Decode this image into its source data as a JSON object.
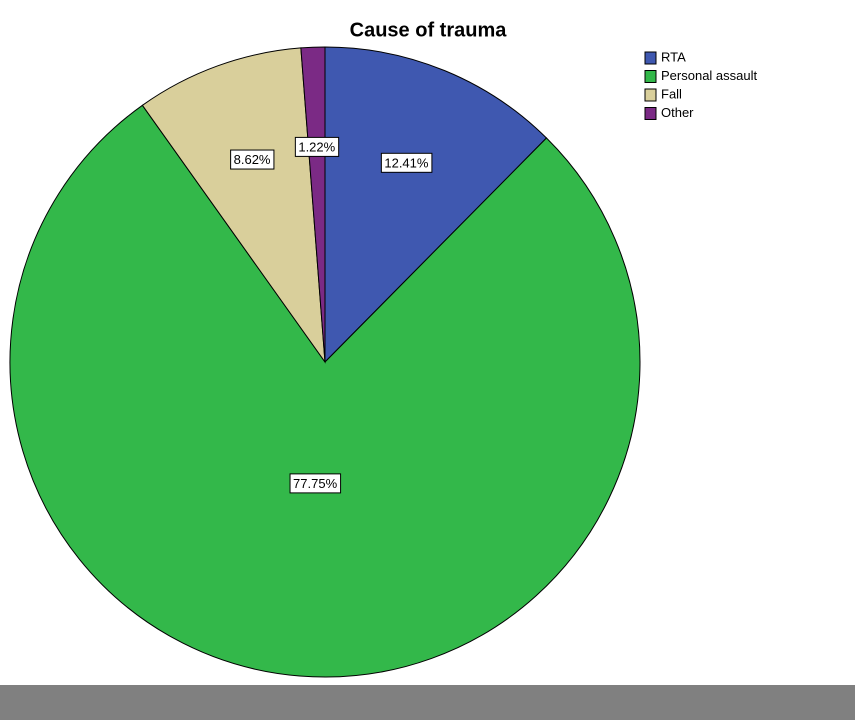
{
  "chart_data": {
    "type": "pie",
    "title": "Cause of trauma",
    "categories": [
      "RTA",
      "Personal assault",
      "Fall",
      "Other"
    ],
    "values": [
      12.41,
      77.75,
      8.62,
      1.22
    ],
    "value_labels": [
      "12.41%",
      "77.75%",
      "8.62%",
      "1.22%"
    ],
    "colors": [
      "#3f58b0",
      "#33b84a",
      "#d9cf9b",
      "#7b2a85"
    ],
    "legend": "top-right"
  }
}
